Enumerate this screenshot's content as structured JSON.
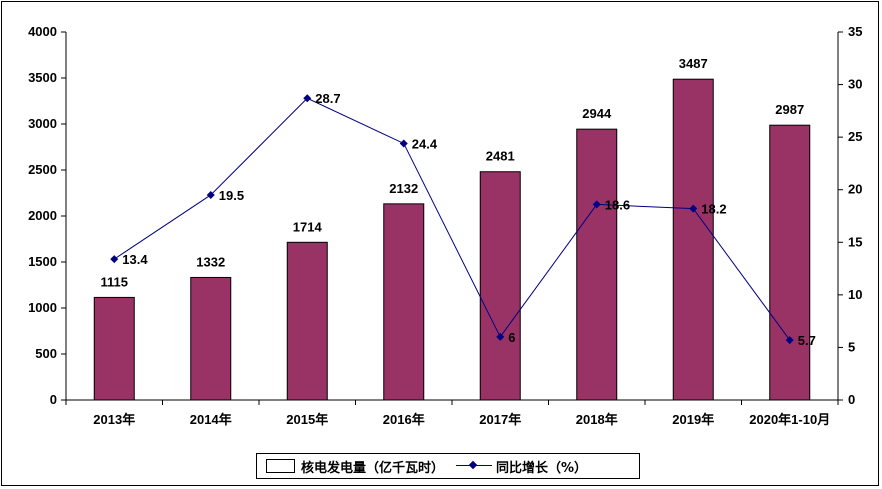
{
  "chart_data": {
    "type": "bar",
    "categories": [
      "2013年",
      "2014年",
      "2015年",
      "2016年",
      "2017年",
      "2018年",
      "2019年",
      "2020年1-10月"
    ],
    "series": [
      {
        "name": "核电发电量（亿千瓦时）",
        "type": "bar",
        "axis": "left",
        "color": "#993366",
        "values": [
          1115,
          1332,
          1714,
          2132,
          2481,
          2944,
          3487,
          2987
        ],
        "labels": [
          "1115",
          "1332",
          "1714",
          "2132",
          "2481",
          "2944",
          "3487",
          "2987"
        ]
      },
      {
        "name": "同比增长（%）",
        "type": "line",
        "axis": "right",
        "color": "#000080",
        "values": [
          13.4,
          19.5,
          28.7,
          24.4,
          6,
          18.6,
          18.2,
          5.7
        ],
        "labels": [
          "13.4",
          "19.5",
          "28.7",
          "24.4",
          "6",
          "18.6",
          "18.2",
          "5.7"
        ]
      }
    ],
    "y_left": {
      "min": 0,
      "max": 4000,
      "step": 500,
      "ticks": [
        "0",
        "500",
        "1000",
        "1500",
        "2000",
        "2500",
        "3000",
        "3500",
        "4000"
      ]
    },
    "y_right": {
      "min": 0,
      "max": 35,
      "step": 5,
      "ticks": [
        "0",
        "5",
        "10",
        "15",
        "20",
        "25",
        "30",
        "35"
      ]
    },
    "grid": false,
    "legend_position": "bottom-center"
  },
  "legend": {
    "bar_label": "核电发电量（亿千瓦时）",
    "line_label": "同比增长（%）"
  }
}
